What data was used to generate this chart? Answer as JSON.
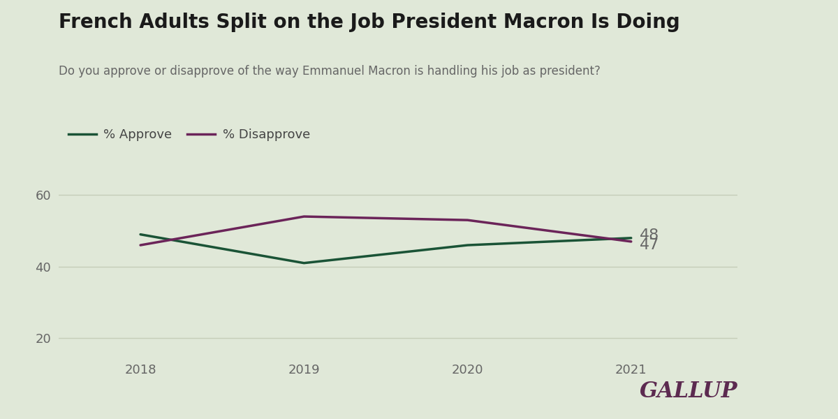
{
  "title": "French Adults Split on the Job President Macron Is Doing",
  "subtitle": "Do you approve or disapprove of the way Emmanuel Macron is handling his job as president?",
  "years": [
    2018,
    2019,
    2020,
    2021
  ],
  "approve": [
    49,
    41,
    46,
    48
  ],
  "disapprove": [
    46,
    54,
    53,
    47
  ],
  "approve_color": "#1a5336",
  "disapprove_color": "#6b2459",
  "background_color": "#e0e8d8",
  "grid_color": "#c5cdb8",
  "title_fontsize": 20,
  "subtitle_fontsize": 12,
  "tick_fontsize": 13,
  "legend_fontsize": 13,
  "label_fontsize": 16,
  "gallup_fontsize": 22,
  "ylim": [
    15,
    70
  ],
  "yticks": [
    20,
    40,
    60
  ],
  "line_width": 2.5,
  "end_label_approve": "48",
  "end_label_disapprove": "47",
  "gallup_text": "GALLUP",
  "gallup_color": "#5c2a50",
  "tick_color": "#666666",
  "title_color": "#1a1a1a",
  "subtitle_color": "#666666"
}
